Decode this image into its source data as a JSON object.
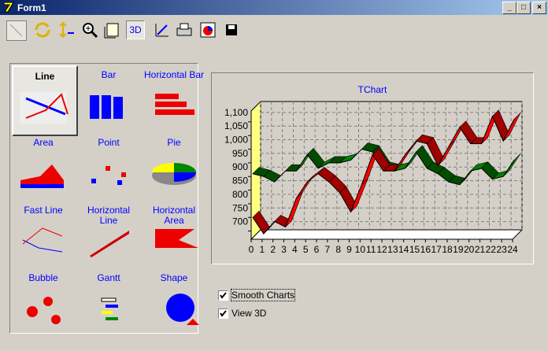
{
  "window": {
    "title": "Form1"
  },
  "toolbar": {
    "view_3d_button": "3D"
  },
  "gallery": {
    "items": [
      "Line",
      "Bar",
      "Horizontal Bar",
      "Area",
      "Point",
      "Pie",
      "Fast Line",
      "Horizontal Line",
      "Horizontal Area",
      "Bubble",
      "Gantt",
      "Shape"
    ]
  },
  "options": {
    "smooth_charts": "Smooth Charts",
    "view_3d": "View 3D"
  },
  "chart_data": {
    "type": "line",
    "title": "TChart",
    "x": [
      0,
      1,
      2,
      3,
      4,
      5,
      6,
      7,
      8,
      9,
      10,
      11,
      12,
      13,
      14,
      15,
      16,
      17,
      18,
      19,
      20,
      21,
      22,
      23,
      24
    ],
    "series": [
      {
        "color": "#ff0000",
        "values": [
          750,
          690,
          735,
          715,
          820,
          880,
          910,
          880,
          840,
          770,
          870,
          980,
          920,
          920,
          980,
          1030,
          1020,
          940,
          1010,
          1080,
          1020,
          1020,
          1120,
          1030,
          1110
        ]
      },
      {
        "color": "#008000",
        "values": [
          910,
          900,
          880,
          920,
          920,
          980,
          930,
          950,
          950,
          960,
          1000,
          990,
          930,
          920,
          930,
          990,
          930,
          910,
          880,
          870,
          920,
          930,
          890,
          900,
          960
        ]
      }
    ],
    "xlim": [
      0,
      24
    ],
    "xticks": [
      0,
      1,
      2,
      3,
      4,
      5,
      6,
      7,
      8,
      9,
      10,
      11,
      12,
      13,
      14,
      15,
      16,
      17,
      18,
      19,
      20,
      21,
      22,
      23,
      24
    ],
    "ylim": [
      670,
      1140
    ],
    "yticks": [
      700,
      750,
      800,
      850,
      900,
      950,
      {
        "value": 1000,
        "label": "1,000"
      },
      {
        "value": 1050,
        "label": "1,050"
      },
      {
        "value": 1100,
        "label": "1,100"
      }
    ],
    "grid": true,
    "view_3d": true,
    "wall_color": "#ffff80"
  }
}
